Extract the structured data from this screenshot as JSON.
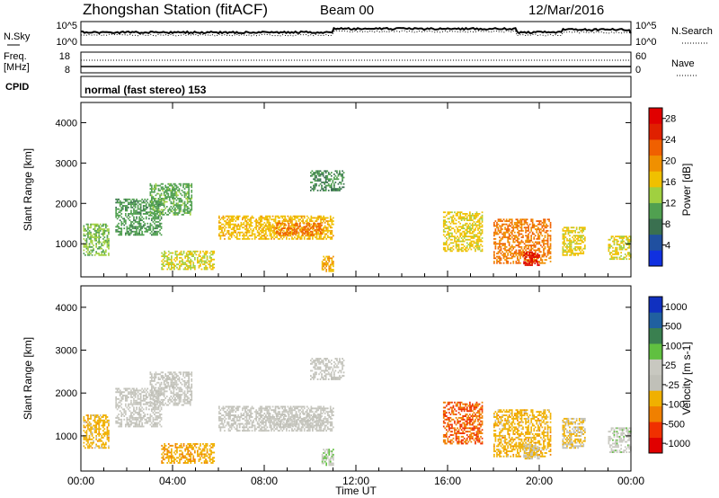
{
  "header": {
    "station": "Zhongshan Station (fitACF)",
    "beam": "Beam 00",
    "date": "12/Mar/2016"
  },
  "noise_panel": {
    "left_label": "N.Sky",
    "right_label": "N.Search",
    "left_ticks": [
      "10^5",
      "10^0"
    ],
    "right_ticks": [
      "10^5",
      "10^0"
    ]
  },
  "freq_panel": {
    "left_label_1": "Freq.",
    "left_label_2": "[MHz]",
    "right_label": "Nave",
    "left_ticks": [
      "18",
      "8"
    ],
    "right_ticks": [
      "60",
      "0"
    ]
  },
  "cpid": {
    "label": "CPID",
    "program": "normal (fast stereo) 153"
  },
  "colors": {
    "power": [
      "#1030e0",
      "#2050a0",
      "#3a7050",
      "#50a050",
      "#a0d040",
      "#f0c000",
      "#f09000",
      "#f06000",
      "#e02000",
      "#e00000"
    ],
    "velocity": [
      "#e00000",
      "#f03000",
      "#f08000",
      "#f0b000",
      "#c0c0b8",
      "#c8c8c0",
      "#60c040",
      "#3a8050",
      "#2060a0",
      "#1030c0"
    ]
  },
  "chart_data": [
    {
      "type": "heatmap",
      "quantity": "Power",
      "ylabel": "Slant Range [km]",
      "ylim": [
        180,
        4500
      ],
      "yticks": [
        1000,
        2000,
        3000,
        4000
      ],
      "xlim": [
        0,
        24
      ],
      "colorbar": {
        "label": "Power [dB]",
        "ticks": [
          "4",
          "8",
          "12",
          "16",
          "20",
          "24",
          "28"
        ],
        "range": [
          0,
          30
        ]
      },
      "echo_regions": [
        {
          "t0": 0.1,
          "t1": 1.2,
          "r0": 700,
          "r1": 1500,
          "value": 12
        },
        {
          "t0": 1.5,
          "t1": 3.5,
          "r0": 1200,
          "r1": 2100,
          "value": 10
        },
        {
          "t0": 3.0,
          "t1": 4.8,
          "r0": 1700,
          "r1": 2500,
          "value": 11
        },
        {
          "t0": 3.5,
          "t1": 5.8,
          "r0": 350,
          "r1": 800,
          "value": 15
        },
        {
          "t0": 6.0,
          "t1": 11.0,
          "r0": 1100,
          "r1": 1700,
          "value": 17
        },
        {
          "t0": 8.5,
          "t1": 10.5,
          "r0": 1200,
          "r1": 1500,
          "value": 22
        },
        {
          "t0": 10.0,
          "t1": 11.5,
          "r0": 2300,
          "r1": 2800,
          "value": 9
        },
        {
          "t0": 10.5,
          "t1": 11.0,
          "r0": 300,
          "r1": 700,
          "value": 18
        },
        {
          "t0": 15.8,
          "t1": 17.5,
          "r0": 800,
          "r1": 1800,
          "value": 16
        },
        {
          "t0": 18.0,
          "t1": 20.5,
          "r0": 500,
          "r1": 1600,
          "value": 21
        },
        {
          "t0": 19.3,
          "t1": 20.0,
          "r0": 450,
          "r1": 800,
          "value": 27
        },
        {
          "t0": 21.0,
          "t1": 22.0,
          "r0": 700,
          "r1": 1400,
          "value": 16
        },
        {
          "t0": 23.0,
          "t1": 24.0,
          "r0": 600,
          "r1": 1200,
          "value": 15
        }
      ]
    },
    {
      "type": "heatmap",
      "quantity": "Velocity",
      "ylabel": "Slant Range [km]",
      "xlabel": "Time UT",
      "ylim": [
        180,
        4500
      ],
      "yticks": [
        1000,
        2000,
        3000,
        4000
      ],
      "xlim": [
        0,
        24
      ],
      "xticks": [
        "00:00",
        "04:00",
        "08:00",
        "12:00",
        "16:00",
        "20:00",
        "00:00"
      ],
      "colorbar": {
        "label": "Velocity [m s-1]",
        "ticks": [
          "-1000",
          "-500",
          "-100",
          "-25",
          "25",
          "100",
          "500",
          "1000"
        ],
        "range": [
          -1000,
          1000
        ]
      },
      "echo_regions": [
        {
          "t0": 0.1,
          "t1": 1.2,
          "r0": 700,
          "r1": 1500,
          "value": -300
        },
        {
          "t0": 1.5,
          "t1": 3.5,
          "r0": 1200,
          "r1": 2100,
          "value": 10
        },
        {
          "t0": 3.0,
          "t1": 4.8,
          "r0": 1700,
          "r1": 2500,
          "value": 5
        },
        {
          "t0": 3.5,
          "t1": 5.8,
          "r0": 350,
          "r1": 800,
          "value": -350
        },
        {
          "t0": 6.0,
          "t1": 11.0,
          "r0": 1100,
          "r1": 1700,
          "value": 5
        },
        {
          "t0": 8.5,
          "t1": 10.5,
          "r0": 1200,
          "r1": 1500,
          "value": 0
        },
        {
          "t0": 10.0,
          "t1": 11.5,
          "r0": 2300,
          "r1": 2800,
          "value": 5
        },
        {
          "t0": 10.5,
          "t1": 11.0,
          "r0": 300,
          "r1": 700,
          "value": 150
        },
        {
          "t0": 15.8,
          "t1": 17.5,
          "r0": 800,
          "r1": 1800,
          "value": -600
        },
        {
          "t0": 18.0,
          "t1": 20.5,
          "r0": 500,
          "r1": 1600,
          "value": -300
        },
        {
          "t0": 19.3,
          "t1": 20.0,
          "r0": 450,
          "r1": 800,
          "value": -150
        },
        {
          "t0": 21.0,
          "t1": 22.0,
          "r0": 700,
          "r1": 1400,
          "value": -200
        },
        {
          "t0": 23.0,
          "t1": 24.0,
          "r0": 600,
          "r1": 1200,
          "value": 120
        }
      ]
    }
  ]
}
